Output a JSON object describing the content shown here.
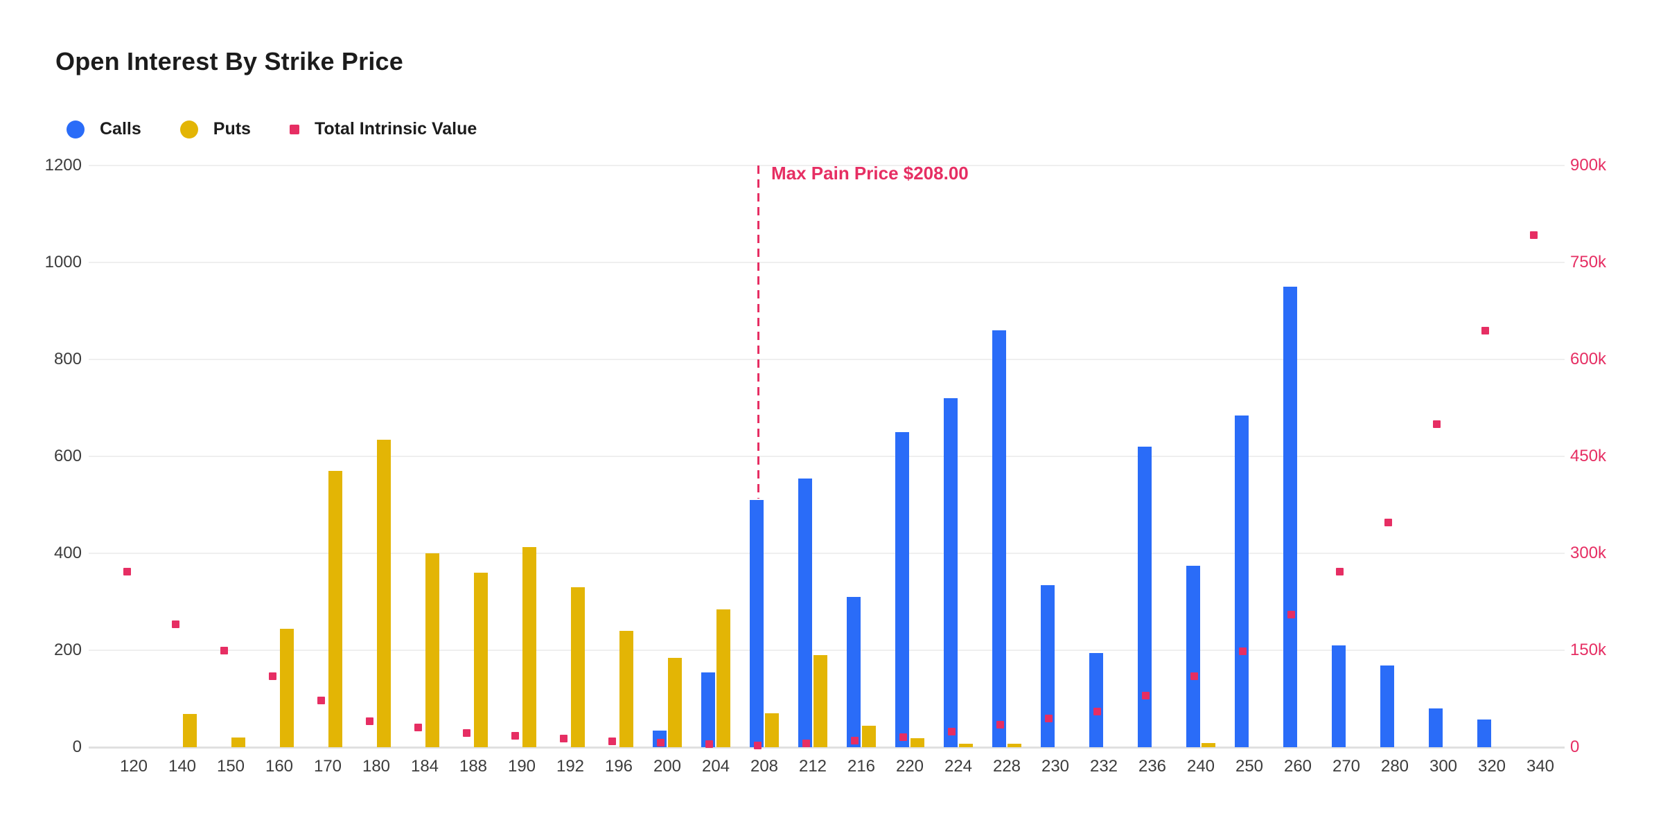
{
  "title": "Open Interest By Strike Price",
  "colors": {
    "calls": "#2a6cf8",
    "puts": "#e3b505",
    "intrinsic": "#e62e63",
    "grid": "#efefef",
    "axis_line": "#e0e0e0",
    "text": "#1c1c1c",
    "tick_text": "#3c3c3c"
  },
  "legend": {
    "items": [
      {
        "label": "Calls",
        "shape": "circle",
        "color": "#2a6cf8"
      },
      {
        "label": "Puts",
        "shape": "circle",
        "color": "#e3b505"
      },
      {
        "label": "Total Intrinsic Value",
        "shape": "square",
        "color": "#e62e63"
      }
    ]
  },
  "max_pain": {
    "label": "Max Pain Price $208.00",
    "strike": "208",
    "color": "#e62e63"
  },
  "chart_data": {
    "type": "bar",
    "title": "Open Interest By Strike Price",
    "grid": true,
    "legend_position": "top-left",
    "categories": [
      "120",
      "140",
      "150",
      "160",
      "170",
      "180",
      "184",
      "188",
      "190",
      "192",
      "196",
      "200",
      "204",
      "208",
      "212",
      "216",
      "220",
      "224",
      "228",
      "230",
      "232",
      "236",
      "240",
      "250",
      "260",
      "270",
      "280",
      "300",
      "320",
      "340"
    ],
    "series": [
      {
        "name": "Calls",
        "type": "bar",
        "axis": "left",
        "color": "#2a6cf8",
        "values": [
          0,
          0,
          0,
          0,
          0,
          0,
          0,
          0,
          0,
          0,
          0,
          35,
          155,
          510,
          555,
          310,
          650,
          720,
          860,
          335,
          195,
          620,
          375,
          685,
          950,
          210,
          168,
          80,
          57,
          0
        ]
      },
      {
        "name": "Puts",
        "type": "bar",
        "axis": "left",
        "color": "#e3b505",
        "values": [
          0,
          68,
          20,
          245,
          570,
          635,
          400,
          360,
          413,
          330,
          240,
          185,
          285,
          70,
          190,
          45,
          18,
          7,
          7,
          0,
          0,
          0,
          8,
          0,
          0,
          0,
          0,
          0,
          0,
          0
        ]
      },
      {
        "name": "Total Intrinsic Value",
        "type": "scatter",
        "axis": "right",
        "color": "#e62e63",
        "values": [
          272000,
          190000,
          150000,
          110000,
          72000,
          40000,
          31000,
          22000,
          18000,
          13000,
          9000,
          7000,
          5000,
          3000,
          6000,
          10000,
          16000,
          24000,
          35000,
          45000,
          55000,
          80000,
          110000,
          148000,
          205000,
          272000,
          348000,
          500000,
          645000,
          792000
        ]
      }
    ],
    "left_axis": {
      "min": 0,
      "max": 1200,
      "ticks": [
        "0",
        "200",
        "400",
        "600",
        "800",
        "1000",
        "1200"
      ]
    },
    "right_axis": {
      "min": 0,
      "max": 900000,
      "ticks": [
        "0",
        "150k",
        "300k",
        "450k",
        "600k",
        "750k",
        "900k"
      ]
    },
    "annotations": [
      {
        "type": "vline",
        "category": "208",
        "label": "Max Pain Price $208.00",
        "style": "dashed",
        "color": "#e62e63"
      }
    ]
  }
}
